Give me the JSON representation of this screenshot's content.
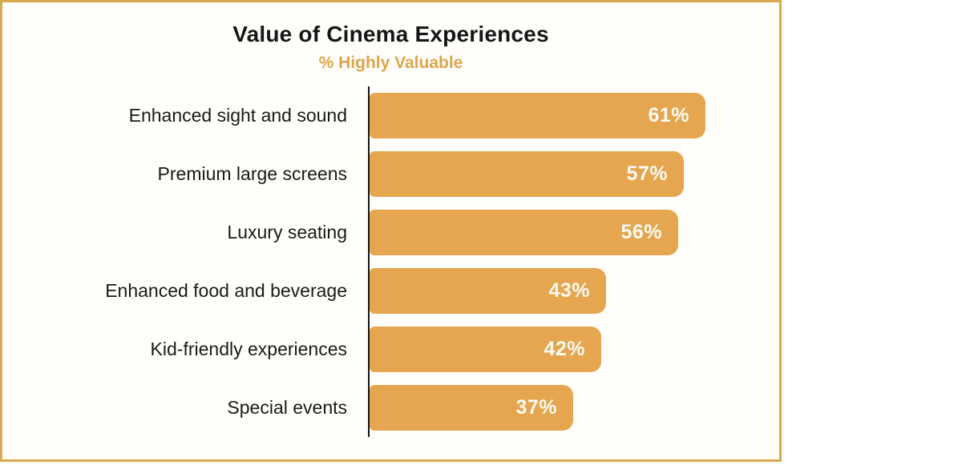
{
  "card": {
    "title": "Value of Cinema Experiences",
    "subtitle": "% Highly Valuable"
  },
  "colors": {
    "bar": "#e5a64f",
    "subtitle_accent": "#dda64c",
    "card_border": "#d9a94f",
    "axis": "#161616",
    "value_text": "#fcfaf3",
    "title_text": "#161616",
    "label_text": "#1a1a1a"
  },
  "chart_data": {
    "type": "bar",
    "orientation": "horizontal",
    "title": "Value of Cinema Experiences",
    "subtitle": "% Highly Valuable",
    "categories": [
      "Enhanced sight and sound",
      "Premium large screens",
      "Luxury seating",
      "Enhanced food and beverage",
      "Kid-friendly experiences",
      "Special events"
    ],
    "values": [
      61,
      57,
      56,
      43,
      42,
      37
    ],
    "value_labels": [
      "61%",
      "57%",
      "56%",
      "43%",
      "42%",
      "37%"
    ],
    "xlabel": "",
    "ylabel": "",
    "xlim": [
      0,
      65
    ],
    "grid": false,
    "legend_position": "none",
    "bar_labels_inside": true
  }
}
